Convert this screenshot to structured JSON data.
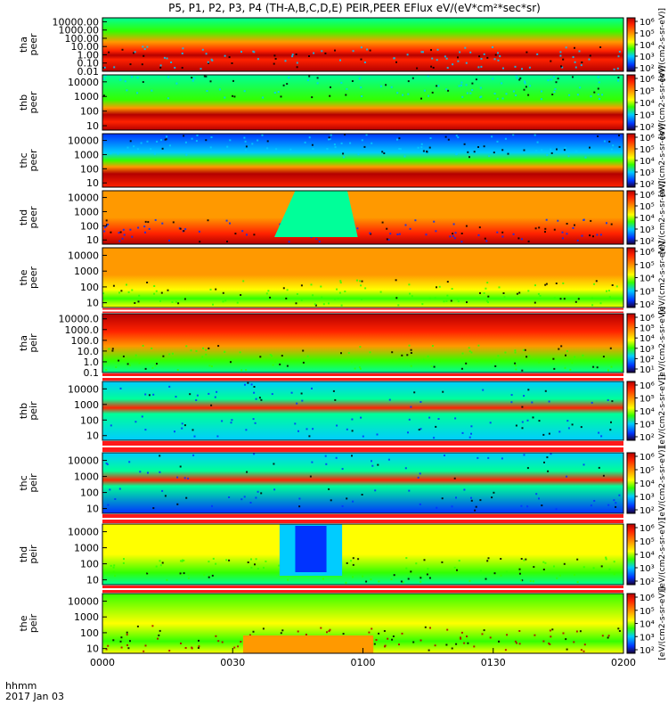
{
  "figure": {
    "title": "P5, P1, P2, P3, P4 (TH-A,B,C,D,E) PEIR,PEER EFlux eV/(eV*cm²*sec*sr)",
    "time_axis_name": "hhmm",
    "date_label": "2017 Jan 03"
  },
  "colors": {
    "colormap": [
      "#1a0033",
      "#0033ff",
      "#00ccff",
      "#00ff99",
      "#33ff00",
      "#ffff00",
      "#ff9900",
      "#ff2200",
      "#b30000"
    ],
    "band": "#ff1a1a",
    "plasma_band_yellow": "#ffff00"
  },
  "chart_data": [
    {
      "type": "heatmap",
      "panel": "tha peer",
      "ylabel": "tha\npeer",
      "y_scale": "log",
      "ylim": [
        0.01,
        30000
      ],
      "y_ticks": [
        "10000.00",
        "1000.00",
        "100.00",
        "10.00",
        "1.00",
        "0.10",
        "0.01"
      ],
      "colorbar_ticks": [
        "10⁶",
        "10⁵",
        "10⁴",
        "10³",
        "10²"
      ],
      "colorbar_label": "[eV/(cm2-s-sr-eV)]",
      "x_ticks": [
        "0000",
        "0030",
        "0100",
        "0130",
        "0200"
      ],
      "xlim": [
        "0000",
        "0200"
      ],
      "features": "dark red stripe near 1 eV with yellow-orange above and below; green-cyan at top energies"
    },
    {
      "type": "heatmap",
      "panel": "thb peer",
      "ylabel": "thb\npeer",
      "y_scale": "log",
      "ylim": [
        5,
        30000
      ],
      "y_ticks": [
        "10000",
        "1000",
        "100",
        "10"
      ],
      "colorbar_ticks": [
        "10⁶",
        "10⁵",
        "10⁴",
        "10³",
        "10²"
      ],
      "colorbar_label": "[eV/(cm2-s-sr-eV)]",
      "x_ticks": [
        "0000",
        "0030",
        "0100",
        "0130",
        "0200"
      ],
      "features": "cyan/green noise at high energies, red band below 100 eV"
    },
    {
      "type": "heatmap",
      "panel": "thc peer",
      "ylabel": "thc\npeer",
      "y_scale": "log",
      "ylim": [
        5,
        30000
      ],
      "y_ticks": [
        "10000",
        "1000",
        "100",
        "10"
      ],
      "colorbar_ticks": [
        "10⁶",
        "10⁵",
        "10⁴",
        "10³",
        "10²"
      ],
      "colorbar_label": "[eV/(cm2-s-sr-eV)]",
      "x_ticks": [
        "0000",
        "0030",
        "0100",
        "0130",
        "0200"
      ],
      "features": "blue noise above 1000 eV, green transition, red below 100 eV"
    },
    {
      "type": "heatmap",
      "panel": "thd peer",
      "ylabel": "thd\npeer",
      "y_scale": "log",
      "ylim": [
        5,
        30000
      ],
      "y_ticks": [
        "10000",
        "1000",
        "100",
        "10"
      ],
      "colorbar_ticks": [
        "10⁶",
        "10⁵",
        "10⁴",
        "10³",
        "10²"
      ],
      "colorbar_label": "[eV/(cm2-s-sr-eV)]",
      "x_ticks": [
        "0000",
        "0030",
        "0100",
        "0130",
        "0200"
      ],
      "features": "orange/yellow field with green trapezoid feature near 0040-0045"
    },
    {
      "type": "heatmap",
      "panel": "the peer",
      "ylabel": "the\npeer",
      "y_scale": "log",
      "ylim": [
        5,
        30000
      ],
      "y_ticks": [
        "10000",
        "1000",
        "100",
        "10"
      ],
      "colorbar_ticks": [
        "10⁶",
        "10⁵",
        "10⁴",
        "10³",
        "10²"
      ],
      "colorbar_label": "[eV/(cm2-s-sr-eV)]",
      "x_ticks": [
        "0000",
        "0030",
        "0100",
        "0130",
        "0200"
      ],
      "features": "yellow/orange field with green streaks at low energies"
    },
    {
      "type": "heatmap",
      "panel": "tha peir",
      "ylabel": "tha\npeir",
      "y_scale": "log",
      "ylim": [
        0.1,
        30000
      ],
      "y_ticks": [
        "10000.0",
        "1000.0",
        "100.0",
        "10.0",
        "1.0",
        "0.1"
      ],
      "colorbar_ticks": [
        "10⁶",
        "10⁵",
        "10⁴",
        "10³",
        "10²",
        "10¹"
      ],
      "colorbar_label": "[eV/(cm2-s-sr-eV)]",
      "x_ticks": [
        "0000",
        "0030",
        "0100",
        "0130",
        "0200"
      ],
      "features": "red above 1000 eV, orange/yellow middle, green noise at low energies"
    },
    {
      "type": "heatmap",
      "panel": "thb peir",
      "ylabel": "thb\npeir",
      "y_scale": "log",
      "ylim": [
        5,
        30000
      ],
      "y_ticks": [
        "10000",
        "1000",
        "100",
        "10"
      ],
      "colorbar_ticks": [
        "10⁶",
        "10⁵",
        "10⁴",
        "10³",
        "10²"
      ],
      "colorbar_label": "[eV/(cm2-s-sr-eV)]",
      "x_ticks": [
        "0000",
        "0030",
        "0100",
        "0130",
        "0200"
      ],
      "features": "cyan/blue noise with red band near 1000 eV"
    },
    {
      "type": "heatmap",
      "panel": "thc peir",
      "ylabel": "thc\npeir",
      "y_scale": "log",
      "ylim": [
        5,
        30000
      ],
      "y_ticks": [
        "10000",
        "1000",
        "100",
        "10"
      ],
      "colorbar_ticks": [
        "10⁶",
        "10⁵",
        "10⁴",
        "10³",
        "10²"
      ],
      "colorbar_label": "[eV/(cm2-s-sr-eV)]",
      "x_ticks": [
        "0000",
        "0030",
        "0100",
        "0130",
        "0200"
      ],
      "features": "cyan/blue noise with red band near 1000 eV"
    },
    {
      "type": "heatmap",
      "panel": "thd peir",
      "ylabel": "thd\npeir",
      "y_scale": "log",
      "ylim": [
        5,
        30000
      ],
      "y_ticks": [
        "10000",
        "1000",
        "100",
        "10"
      ],
      "colorbar_ticks": [
        "10⁶",
        "10⁵",
        "10⁴",
        "10³",
        "10²"
      ],
      "colorbar_label": "[eV/(cm2-s-sr-eV)]",
      "x_ticks": [
        "0000",
        "0030",
        "0100",
        "0130",
        "0200"
      ],
      "features": "yellow/green field with blue column near 0040-0045"
    },
    {
      "type": "heatmap",
      "panel": "the peir",
      "ylabel": "the\npeir",
      "y_scale": "log",
      "ylim": [
        5,
        30000
      ],
      "y_ticks": [
        "10000",
        "1000",
        "100",
        "10"
      ],
      "colorbar_ticks": [
        "10⁶",
        "10⁵",
        "10⁴",
        "10³",
        "10²"
      ],
      "colorbar_label": "[eV/(cm2-s-sr-eV)]",
      "x_ticks": [
        "0000",
        "0030",
        "0100",
        "0130",
        "0200"
      ],
      "features": "green/yellow field, orange patch at low energies around 0040-0055"
    }
  ]
}
